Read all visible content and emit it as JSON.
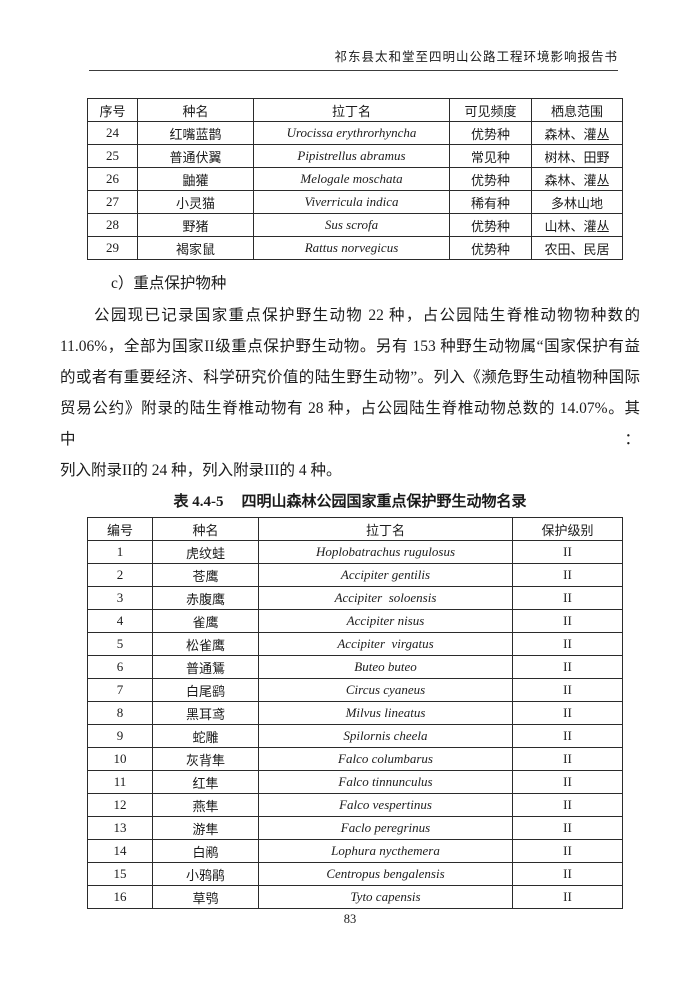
{
  "header": {
    "title": "祁东县太和堂至四明山公路工程环境影响报告书"
  },
  "table1": {
    "headers": [
      "序号",
      "种名",
      "拉丁名",
      "可见频度",
      "栖息范围"
    ],
    "rows": [
      [
        "24",
        "红嘴蓝鹊",
        "Urocissa erythrorhyncha",
        "优势种",
        "森林、灌丛"
      ],
      [
        "25",
        "普通伏翼",
        "Pipistrellus abramus",
        "常见种",
        "树林、田野"
      ],
      [
        "26",
        "鼬獾",
        "Melogale moschata",
        "优势种",
        "森林、灌丛"
      ],
      [
        "27",
        "小灵猫",
        "Viverricula indica",
        "稀有种",
        "多林山地"
      ],
      [
        "28",
        "野猪",
        "Sus scrofa",
        "优势种",
        "山林、灌丛"
      ],
      [
        "29",
        "褐家鼠",
        "Rattus norvegicus",
        "优势种",
        "农田、民居"
      ]
    ]
  },
  "section": {
    "heading": "c）重点保护物种",
    "paragraph_lines": [
      "公园现已记录国家重点保护野生动物 22 种，占公园陆生脊椎动物物种数的",
      "11.06%，全部为国家II级重点保护野生动物。另有 153 种野生动物属“国家保护有益",
      "的或者有重要经济、科学研究价值的陆生野生动物”。列入《濒危野生动植物种国际",
      "贸易公约》附录的陆生脊椎动物有 28 种，占公园陆生脊椎动物总数的 14.07%。其中：",
      "列入附录II的 24 种，列入附录III的 4 种。"
    ]
  },
  "table2": {
    "caption_label": "表 4.4-5",
    "caption_title": "四明山森林公园国家重点保护野生动物名录",
    "headers": [
      "编号",
      "种名",
      "拉丁名",
      "保护级别"
    ],
    "rows": [
      [
        "1",
        "虎纹蛙",
        "Hoplobatrachus rugulosus",
        "II"
      ],
      [
        "2",
        "苍鹰",
        "Accipiter gentilis",
        "II"
      ],
      [
        "3",
        "赤腹鹰",
        "Accipiter  soloensis",
        "II"
      ],
      [
        "4",
        "雀鹰",
        "Accipiter nisus",
        "II"
      ],
      [
        "5",
        "松雀鹰",
        "Accipiter  virgatus",
        "II"
      ],
      [
        "6",
        "普通鵟",
        "Buteo buteo",
        "II"
      ],
      [
        "7",
        "白尾鹞",
        "Circus cyaneus",
        "II"
      ],
      [
        "8",
        "黑耳鸢",
        "Milvus lineatus",
        "II"
      ],
      [
        "9",
        "蛇雕",
        "Spilornis cheela",
        "II"
      ],
      [
        "10",
        "灰背隼",
        "Falco columbarus",
        "II"
      ],
      [
        "11",
        "红隼",
        "Falco tinnunculus",
        "II"
      ],
      [
        "12",
        "燕隼",
        "Falco vespertinus",
        "II"
      ],
      [
        "13",
        "游隼",
        "Faclo peregrinus",
        "II"
      ],
      [
        "14",
        "白鹇",
        "Lophura nycthemera",
        "II"
      ],
      [
        "15",
        "小鸦鹃",
        "Centropus bengalensis",
        "II"
      ],
      [
        "16",
        "草鸮",
        "Tyto capensis",
        "II"
      ]
    ]
  },
  "footer": {
    "page_number": "83"
  }
}
